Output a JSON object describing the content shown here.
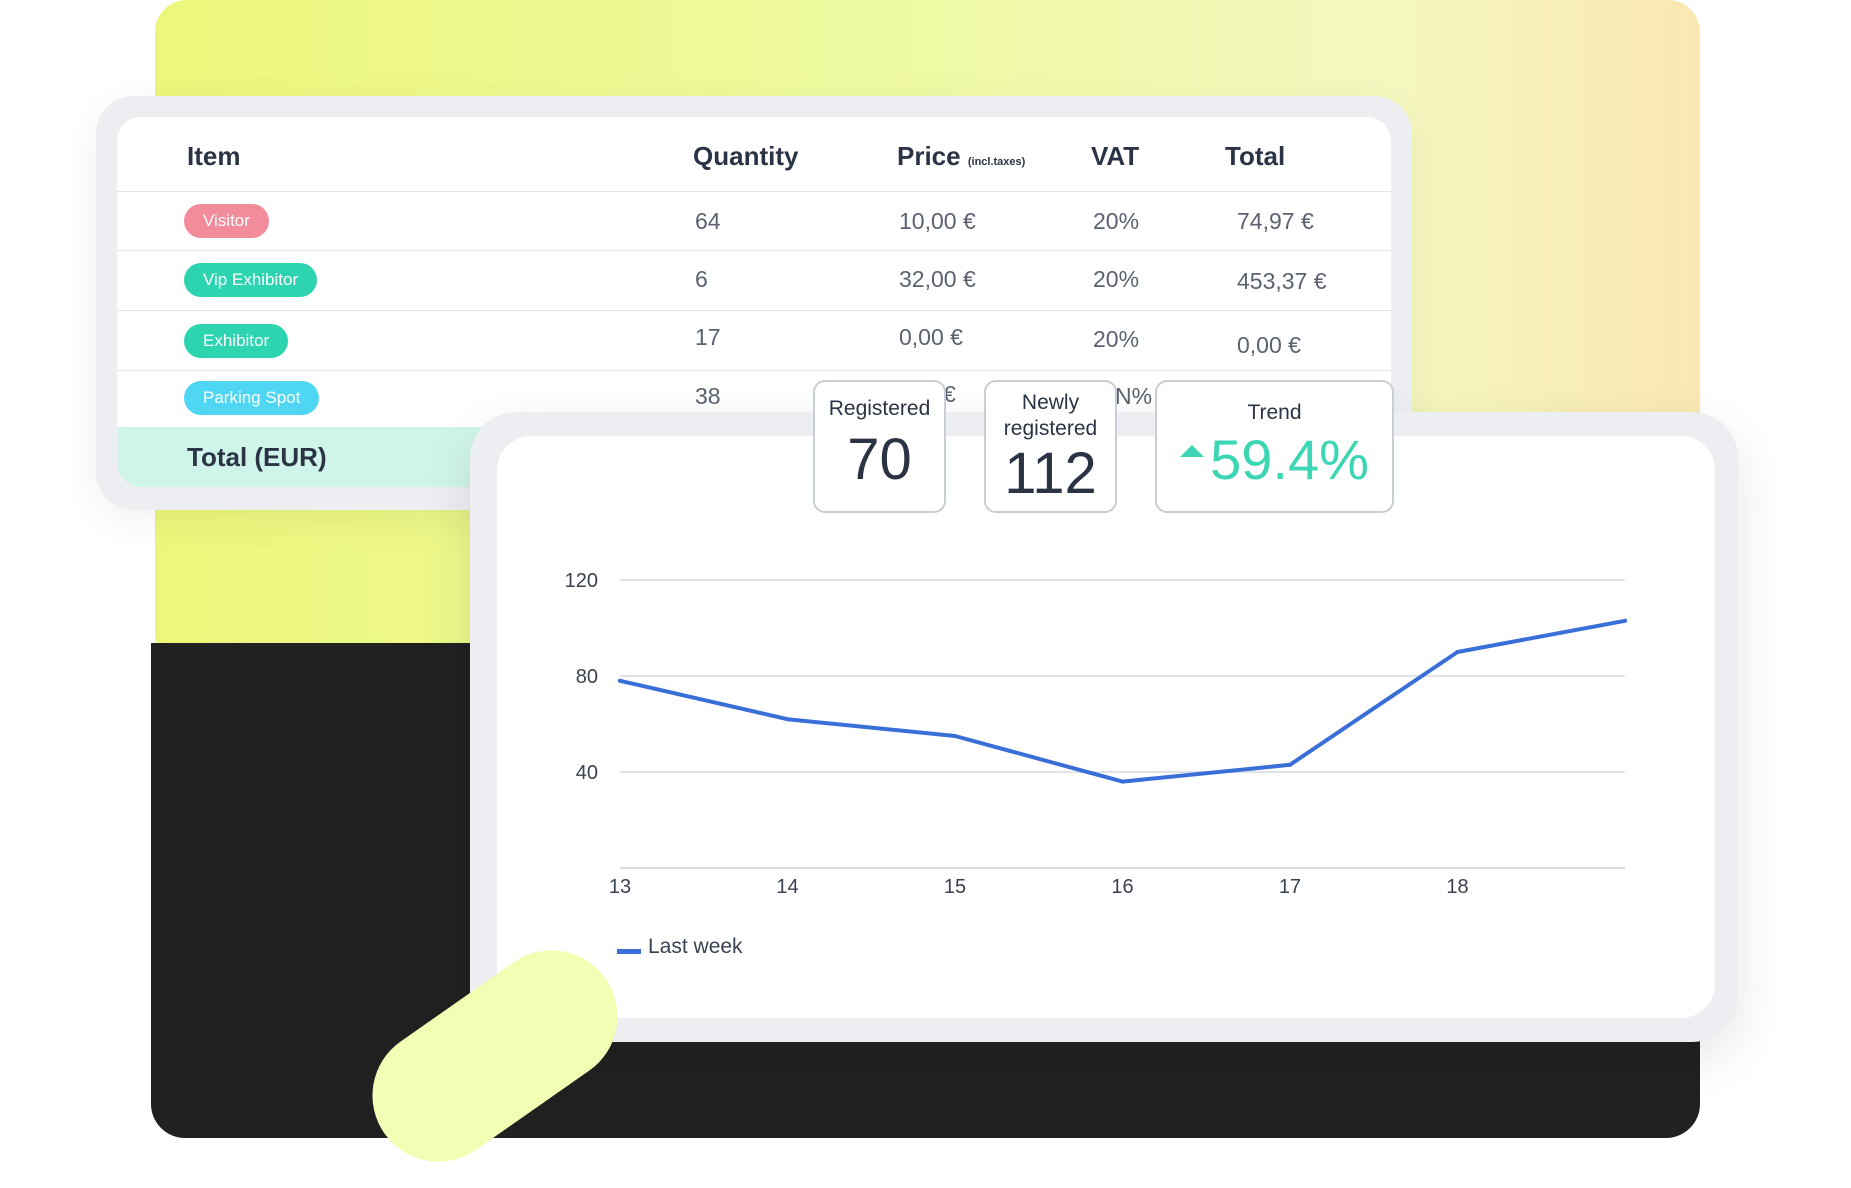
{
  "table": {
    "headers": {
      "item": "Item",
      "quantity": "Quantity",
      "price": "Price",
      "price_note": "(incl.taxes)",
      "vat": "VAT",
      "total": "Total"
    },
    "rows": [
      {
        "item": "Visitor",
        "color": "#f28b9a",
        "quantity": "64",
        "price": "10,00 €",
        "vat": "20%",
        "total": "74,97 €"
      },
      {
        "item": "Vip Exhibitor",
        "color": "#2dd4b0",
        "quantity": "6",
        "price": "32,00 €",
        "vat": "20%",
        "total": "453,37 €"
      },
      {
        "item": "Exhibitor",
        "color": "#2dd4b0",
        "quantity": "17",
        "price": "0,00 €",
        "vat": "20%",
        "total": "0,00 €"
      },
      {
        "item": "Parking Spot",
        "color": "#4fd6f2",
        "quantity": "38",
        "price": "€",
        "vat": "N%",
        "total": ""
      }
    ],
    "total_label": "Total (EUR)"
  },
  "stats": {
    "registered_label": "Registered",
    "registered_value": "70",
    "newly_label_line1": "Newly",
    "newly_label_line2": "registered",
    "newly_value": "112",
    "trend_label": "Trend",
    "trend_value": "59.4%"
  },
  "chart_data": {
    "type": "line",
    "x": [
      13,
      14,
      15,
      16,
      17,
      18,
      19
    ],
    "xticks": [
      "13",
      "14",
      "15",
      "16",
      "17",
      "18"
    ],
    "yticks": [
      "40",
      "80",
      "120"
    ],
    "ylim": [
      0,
      120
    ],
    "series": [
      {
        "name": "Last week",
        "color": "#3b6fd8",
        "values": [
          78,
          62,
          55,
          36,
          43,
          90,
          103
        ]
      }
    ],
    "legend": "bottom-left",
    "grid": true
  }
}
